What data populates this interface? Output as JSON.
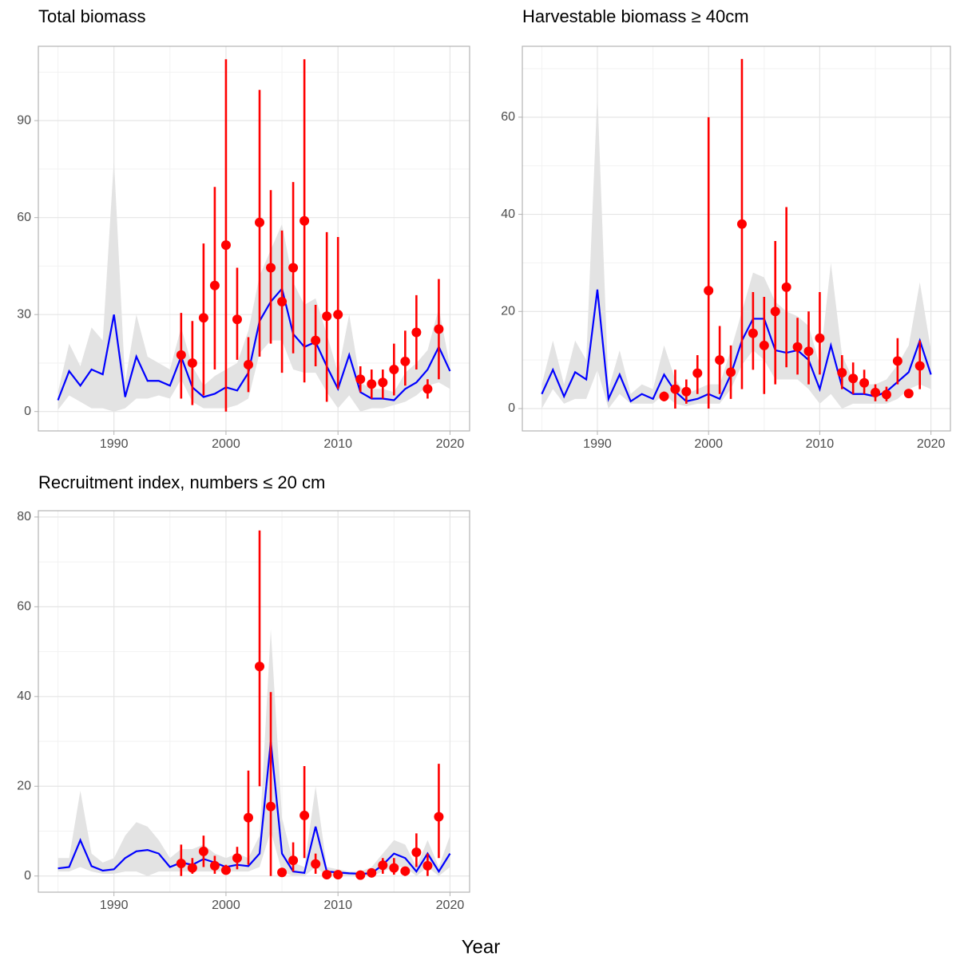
{
  "xlabel": "Year",
  "chart_data": [
    {
      "type": "line",
      "title": "Total biomass",
      "x": [
        1985,
        1986,
        1987,
        1988,
        1989,
        1990,
        1991,
        1992,
        1993,
        1994,
        1995,
        1996,
        1997,
        1998,
        1999,
        2000,
        2001,
        2002,
        2003,
        2004,
        2005,
        2006,
        2007,
        2008,
        2009,
        2010,
        2011,
        2012,
        2013,
        2014,
        2015,
        2016,
        2017,
        2018,
        2019,
        2020
      ],
      "xlim": [
        1983.25,
        2021.75
      ],
      "xticks": [
        1990,
        2000,
        2010,
        2020
      ],
      "ylim": [
        -6,
        113
      ],
      "yticks": [
        0,
        30,
        60,
        90
      ],
      "grid": true,
      "band": {
        "color": "#e3e3e3",
        "lower": [
          0.5,
          5,
          3,
          1,
          1,
          0,
          1,
          4,
          4,
          5,
          4,
          10,
          3,
          1,
          1,
          1,
          2,
          4,
          18,
          22,
          22,
          13,
          12,
          12,
          6,
          1,
          5,
          0,
          1,
          1,
          2,
          3,
          5,
          8,
          9,
          7
        ],
        "upper": [
          6,
          21,
          14,
          26,
          22,
          78,
          9,
          30,
          17,
          15,
          13,
          26,
          14,
          8,
          11,
          13,
          15,
          25,
          42,
          50,
          58,
          40,
          33,
          35,
          24,
          12,
          30,
          9,
          7,
          7,
          6,
          12,
          15,
          19,
          32,
          14
        ]
      },
      "line": {
        "color": "#0000ff",
        "values": [
          3.5,
          12.5,
          8,
          13,
          11.5,
          30,
          4.5,
          17,
          9.5,
          9.5,
          8,
          17,
          7.5,
          4.5,
          5.5,
          7.5,
          6.5,
          12,
          28,
          34,
          38,
          24,
          20,
          21.5,
          14,
          7,
          17.5,
          6,
          4,
          4,
          3.5,
          7,
          9,
          13,
          20,
          12.5
        ]
      },
      "points": {
        "color": "#ff0000",
        "x": [
          1996,
          1997,
          1998,
          1999,
          2000,
          2001,
          2002,
          2003,
          2004,
          2005,
          2006,
          2007,
          2008,
          2009,
          2010,
          2012,
          2013,
          2014,
          2015,
          2016,
          2017,
          2018,
          2019
        ],
        "values": [
          17.5,
          15,
          29,
          39,
          51.5,
          28.5,
          14.5,
          58.5,
          44.5,
          34,
          44.5,
          59,
          22,
          29.5,
          30,
          10,
          8.5,
          9,
          13,
          15.5,
          24.5,
          7,
          25.5
        ],
        "lower": [
          4,
          2,
          5,
          13,
          0,
          16,
          6,
          17,
          21,
          12,
          18,
          9,
          14,
          3,
          7,
          6,
          4,
          4,
          5,
          8,
          13,
          4,
          10
        ],
        "upper": [
          30.5,
          28,
          52,
          69.5,
          109,
          44.5,
          23,
          99.5,
          68.5,
          56,
          71,
          109,
          33,
          55.5,
          54,
          14,
          13,
          13,
          21,
          25,
          36,
          10,
          41
        ]
      }
    },
    {
      "type": "line",
      "title": "Harvestable biomass ≥ 40cm",
      "x": [
        1985,
        1986,
        1987,
        1988,
        1989,
        1990,
        1991,
        1992,
        1993,
        1994,
        1995,
        1996,
        1997,
        1998,
        1999,
        2000,
        2001,
        2002,
        2003,
        2004,
        2005,
        2006,
        2007,
        2008,
        2009,
        2010,
        2011,
        2012,
        2013,
        2014,
        2015,
        2016,
        2017,
        2018,
        2019,
        2020
      ],
      "xlim": [
        1983.25,
        2021.75
      ],
      "xticks": [
        1990,
        2000,
        2010,
        2020
      ],
      "ylim": [
        -4.6,
        74.6
      ],
      "yticks": [
        0,
        20,
        40,
        60
      ],
      "grid": true,
      "band": {
        "color": "#e3e3e3",
        "lower": [
          0,
          4,
          1,
          2,
          2,
          8,
          0,
          3,
          1,
          1,
          1,
          3,
          1,
          0.5,
          1,
          1,
          1,
          4,
          9,
          12,
          10,
          6,
          6,
          6,
          4,
          1,
          3,
          0,
          1,
          1,
          1,
          1,
          2,
          4,
          5,
          4
        ],
        "upper": [
          5,
          14,
          5,
          14,
          10,
          65,
          4,
          12,
          3,
          5,
          4,
          13,
          6,
          3,
          4,
          5,
          5,
          12,
          20,
          28,
          27,
          22,
          20,
          19,
          17,
          9,
          30,
          11,
          6,
          5,
          5,
          6,
          9,
          13,
          26,
          12
        ]
      },
      "line": {
        "color": "#0000ff",
        "values": [
          3,
          8,
          2.5,
          7.5,
          6,
          24.5,
          2,
          7,
          1.5,
          3,
          2,
          7,
          3.5,
          1.5,
          2,
          3,
          2,
          7,
          14,
          18.5,
          18.5,
          12,
          11.5,
          12,
          10,
          4,
          13,
          4.5,
          3,
          3,
          2.5,
          3.5,
          5.5,
          7.5,
          14,
          7
        ]
      },
      "points": {
        "color": "#ff0000",
        "x": [
          1996,
          1997,
          1998,
          1999,
          2000,
          2001,
          2002,
          2003,
          2004,
          2005,
          2006,
          2007,
          2008,
          2009,
          2010,
          2012,
          2013,
          2014,
          2015,
          2016,
          2017,
          2018,
          2019
        ],
        "values": [
          2.5,
          4,
          3.5,
          7.3,
          24.3,
          10,
          7.5,
          38,
          15.5,
          13,
          20,
          25,
          12.7,
          11.8,
          14.5,
          7.4,
          6.2,
          5.3,
          3.3,
          2.9,
          9.8,
          3.1,
          8.8
        ],
        "lower": [
          1.5,
          0,
          1,
          3,
          0,
          3,
          2,
          4,
          8,
          3,
          5,
          8.5,
          7,
          5,
          7,
          4,
          3,
          3,
          1.5,
          1.5,
          5,
          2.5,
          4
        ],
        "upper": [
          3.5,
          8,
          6,
          11,
          60,
          17,
          13,
          72,
          24,
          23,
          34.5,
          41.5,
          18.7,
          20,
          24,
          11,
          9.5,
          8,
          5,
          4.5,
          14.5,
          3.8,
          14
        ]
      }
    },
    {
      "type": "line",
      "title": "Recruitment index, numbers ≤ 20 cm",
      "x": [
        1985,
        1986,
        1987,
        1988,
        1989,
        1990,
        1991,
        1992,
        1993,
        1994,
        1995,
        1996,
        1997,
        1998,
        1999,
        2000,
        2001,
        2002,
        2003,
        2004,
        2005,
        2006,
        2007,
        2008,
        2009,
        2010,
        2011,
        2012,
        2013,
        2014,
        2015,
        2016,
        2017,
        2018,
        2019,
        2020
      ],
      "xlim": [
        1983.25,
        2021.75
      ],
      "xticks": [
        1990,
        2000,
        2010,
        2020
      ],
      "ylim": [
        -3.6,
        81.4
      ],
      "yticks": [
        0,
        20,
        40,
        60,
        80
      ],
      "grid": true,
      "band": {
        "color": "#e3e3e3",
        "lower": [
          1,
          1,
          2,
          1,
          0.5,
          0.5,
          1,
          1,
          0,
          1,
          1,
          1,
          1,
          1,
          1,
          1,
          1,
          1,
          2,
          10,
          1,
          0,
          0,
          2,
          0,
          0,
          0,
          0,
          0,
          1,
          2,
          2,
          0,
          2,
          0,
          2
        ],
        "upper": [
          4,
          4,
          19,
          5,
          3,
          4,
          9,
          12,
          11,
          8,
          4,
          6,
          6,
          7,
          5,
          4,
          5,
          4,
          9,
          55,
          13,
          3,
          2,
          20,
          2,
          1.5,
          1,
          1,
          2,
          5,
          8,
          7,
          2,
          8,
          2,
          9
        ]
      },
      "line": {
        "color": "#0000ff",
        "values": [
          1.7,
          2,
          8,
          2.2,
          1.2,
          1.5,
          4,
          5.5,
          5.8,
          5,
          2,
          3,
          2.5,
          3.8,
          3,
          2,
          2.5,
          2.2,
          5,
          30,
          5,
          1,
          0.7,
          11,
          1,
          0.8,
          0.6,
          0.5,
          0.6,
          2.5,
          5,
          4,
          1,
          5,
          1,
          5
        ]
      },
      "points": {
        "color": "#ff0000",
        "x": [
          1996,
          1997,
          1998,
          1999,
          2000,
          2001,
          2002,
          2003,
          2004,
          2005,
          2006,
          2007,
          2008,
          2009,
          2010,
          2012,
          2013,
          2014,
          2015,
          2016,
          2017,
          2018,
          2019
        ],
        "values": [
          2.8,
          1.8,
          5.5,
          2.3,
          1.3,
          4,
          13,
          46.7,
          15.5,
          0.8,
          3.5,
          13.5,
          2.7,
          0.3,
          0.3,
          0.2,
          0.7,
          2.4,
          1.8,
          1.1,
          5.3,
          2.3,
          13.2
        ],
        "lower": [
          0,
          0.5,
          2,
          0.5,
          0.3,
          1.5,
          2.5,
          20,
          0,
          0.5,
          1,
          4,
          0.5,
          0,
          0,
          0,
          0,
          0.5,
          0.3,
          0,
          2,
          0,
          4
        ],
        "upper": [
          7,
          4,
          9,
          4.5,
          2.5,
          6.5,
          23.5,
          77,
          41,
          1.5,
          7.5,
          24.5,
          5,
          0.8,
          0.8,
          0.5,
          1.5,
          4,
          4,
          2,
          9.5,
          5,
          25
        ]
      }
    }
  ]
}
